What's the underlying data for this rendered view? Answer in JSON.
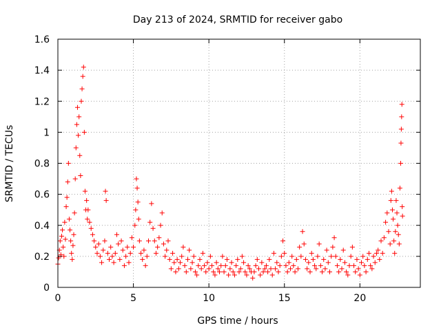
{
  "chart_data": {
    "type": "scatter",
    "title": "Day 213 of 2024, SRMTID for receiver gabo",
    "xlabel": "GPS time / hours",
    "ylabel": "SRMTID / TECUs",
    "xlim": [
      0,
      24
    ],
    "ylim": [
      0,
      1.6
    ],
    "xticks": [
      0,
      5,
      10,
      15,
      20
    ],
    "xtick_labels": [
      "0",
      "5",
      "10",
      "15",
      "20"
    ],
    "yticks": [
      0,
      0.2,
      0.4,
      0.6,
      0.8,
      1.0,
      1.2,
      1.4,
      1.6
    ],
    "ytick_labels": [
      "0",
      "0.2",
      "0.4",
      "0.6",
      "0.8",
      "1",
      "1.2",
      "1.4",
      "1.6"
    ],
    "grid": true,
    "marker": "+",
    "marker_color": "#ff0000",
    "series": [
      {
        "name": "SRMTID",
        "points": [
          [
            0.0,
            0.15
          ],
          [
            0.05,
            0.19
          ],
          [
            0.1,
            0.24
          ],
          [
            0.15,
            0.3
          ],
          [
            0.2,
            0.21
          ],
          [
            0.25,
            0.33
          ],
          [
            0.3,
            0.37
          ],
          [
            0.35,
            0.26
          ],
          [
            0.4,
            0.2
          ],
          [
            0.45,
            0.42
          ],
          [
            0.5,
            0.31
          ],
          [
            0.55,
            0.52
          ],
          [
            0.6,
            0.58
          ],
          [
            0.65,
            0.68
          ],
          [
            0.7,
            0.8
          ],
          [
            0.75,
            0.44
          ],
          [
            0.8,
            0.37
          ],
          [
            0.85,
            0.3
          ],
          [
            0.9,
            0.22
          ],
          [
            0.95,
            0.18
          ],
          [
            1.0,
            0.27
          ],
          [
            1.05,
            0.34
          ],
          [
            1.1,
            0.48
          ],
          [
            1.15,
            0.7
          ],
          [
            1.2,
            0.9
          ],
          [
            1.25,
            1.05
          ],
          [
            1.3,
            1.16
          ],
          [
            1.35,
            0.98
          ],
          [
            1.4,
            1.1
          ],
          [
            1.45,
            0.85
          ],
          [
            1.5,
            0.72
          ],
          [
            1.55,
            1.2
          ],
          [
            1.6,
            1.28
          ],
          [
            1.65,
            1.36
          ],
          [
            1.7,
            1.42
          ],
          [
            1.75,
            1.0
          ],
          [
            1.8,
            0.62
          ],
          [
            1.85,
            0.5
          ],
          [
            1.9,
            0.56
          ],
          [
            1.95,
            0.44
          ],
          [
            2.0,
            0.5
          ],
          [
            2.1,
            0.42
          ],
          [
            2.2,
            0.38
          ],
          [
            2.3,
            0.34
          ],
          [
            2.4,
            0.3
          ],
          [
            2.5,
            0.26
          ],
          [
            2.6,
            0.22
          ],
          [
            2.7,
            0.28
          ],
          [
            2.8,
            0.2
          ],
          [
            2.9,
            0.16
          ],
          [
            3.0,
            0.24
          ],
          [
            3.1,
            0.3
          ],
          [
            3.15,
            0.62
          ],
          [
            3.2,
            0.56
          ],
          [
            3.3,
            0.22
          ],
          [
            3.4,
            0.18
          ],
          [
            3.5,
            0.26
          ],
          [
            3.6,
            0.2
          ],
          [
            3.7,
            0.16
          ],
          [
            3.8,
            0.22
          ],
          [
            3.9,
            0.34
          ],
          [
            4.0,
            0.28
          ],
          [
            4.1,
            0.18
          ],
          [
            4.2,
            0.3
          ],
          [
            4.3,
            0.24
          ],
          [
            4.4,
            0.14
          ],
          [
            4.5,
            0.2
          ],
          [
            4.6,
            0.26
          ],
          [
            4.7,
            0.16
          ],
          [
            4.8,
            0.22
          ],
          [
            4.9,
            0.32
          ],
          [
            5.0,
            0.26
          ],
          [
            5.1,
            0.4
          ],
          [
            5.15,
            0.5
          ],
          [
            5.2,
            0.7
          ],
          [
            5.25,
            0.64
          ],
          [
            5.3,
            0.55
          ],
          [
            5.35,
            0.44
          ],
          [
            5.4,
            0.3
          ],
          [
            5.5,
            0.22
          ],
          [
            5.6,
            0.18
          ],
          [
            5.7,
            0.24
          ],
          [
            5.8,
            0.14
          ],
          [
            5.9,
            0.2
          ],
          [
            6.0,
            0.3
          ],
          [
            6.1,
            0.42
          ],
          [
            6.2,
            0.54
          ],
          [
            6.3,
            0.38
          ],
          [
            6.4,
            0.3
          ],
          [
            6.5,
            0.22
          ],
          [
            6.6,
            0.26
          ],
          [
            6.7,
            0.32
          ],
          [
            6.8,
            0.4
          ],
          [
            6.9,
            0.48
          ],
          [
            7.0,
            0.28
          ],
          [
            7.1,
            0.2
          ],
          [
            7.2,
            0.24
          ],
          [
            7.3,
            0.3
          ],
          [
            7.4,
            0.18
          ],
          [
            7.5,
            0.12
          ],
          [
            7.6,
            0.22
          ],
          [
            7.7,
            0.16
          ],
          [
            7.8,
            0.1
          ],
          [
            7.9,
            0.18
          ],
          [
            8.0,
            0.12
          ],
          [
            8.1,
            0.16
          ],
          [
            8.2,
            0.2
          ],
          [
            8.3,
            0.26
          ],
          [
            8.4,
            0.14
          ],
          [
            8.5,
            0.1
          ],
          [
            8.6,
            0.18
          ],
          [
            8.7,
            0.24
          ],
          [
            8.8,
            0.12
          ],
          [
            8.9,
            0.16
          ],
          [
            9.0,
            0.2
          ],
          [
            9.1,
            0.1
          ],
          [
            9.2,
            0.08
          ],
          [
            9.3,
            0.14
          ],
          [
            9.4,
            0.18
          ],
          [
            9.5,
            0.12
          ],
          [
            9.6,
            0.22
          ],
          [
            9.7,
            0.14
          ],
          [
            9.8,
            0.1
          ],
          [
            9.9,
            0.16
          ],
          [
            10.0,
            0.12
          ],
          [
            10.1,
            0.2
          ],
          [
            10.2,
            0.14
          ],
          [
            10.3,
            0.1
          ],
          [
            10.4,
            0.08
          ],
          [
            10.5,
            0.16
          ],
          [
            10.6,
            0.12
          ],
          [
            10.7,
            0.1
          ],
          [
            10.8,
            0.14
          ],
          [
            10.9,
            0.2
          ],
          [
            11.0,
            0.1
          ],
          [
            11.1,
            0.14
          ],
          [
            11.2,
            0.18
          ],
          [
            11.3,
            0.08
          ],
          [
            11.4,
            0.12
          ],
          [
            11.5,
            0.16
          ],
          [
            11.6,
            0.1
          ],
          [
            11.7,
            0.08
          ],
          [
            11.8,
            0.14
          ],
          [
            11.9,
            0.18
          ],
          [
            12.0,
            0.1
          ],
          [
            12.1,
            0.12
          ],
          [
            12.2,
            0.2
          ],
          [
            12.3,
            0.16
          ],
          [
            12.4,
            0.1
          ],
          [
            12.5,
            0.08
          ],
          [
            12.6,
            0.14
          ],
          [
            12.7,
            0.12
          ],
          [
            12.8,
            0.1
          ],
          [
            12.9,
            0.06
          ],
          [
            13.0,
            0.1
          ],
          [
            13.1,
            0.14
          ],
          [
            13.2,
            0.18
          ],
          [
            13.3,
            0.12
          ],
          [
            13.4,
            0.08
          ],
          [
            13.5,
            0.16
          ],
          [
            13.6,
            0.1
          ],
          [
            13.7,
            0.12
          ],
          [
            13.8,
            0.14
          ],
          [
            13.9,
            0.1
          ],
          [
            14.0,
            0.18
          ],
          [
            14.1,
            0.12
          ],
          [
            14.2,
            0.08
          ],
          [
            14.3,
            0.22
          ],
          [
            14.4,
            0.12
          ],
          [
            14.5,
            0.16
          ],
          [
            14.6,
            0.1
          ],
          [
            14.7,
            0.14
          ],
          [
            14.8,
            0.2
          ],
          [
            14.9,
            0.3
          ],
          [
            15.0,
            0.22
          ],
          [
            15.1,
            0.14
          ],
          [
            15.2,
            0.1
          ],
          [
            15.3,
            0.16
          ],
          [
            15.4,
            0.12
          ],
          [
            15.5,
            0.2
          ],
          [
            15.6,
            0.14
          ],
          [
            15.7,
            0.1
          ],
          [
            15.8,
            0.18
          ],
          [
            15.9,
            0.12
          ],
          [
            16.0,
            0.26
          ],
          [
            16.1,
            0.2
          ],
          [
            16.2,
            0.36
          ],
          [
            16.3,
            0.28
          ],
          [
            16.4,
            0.18
          ],
          [
            16.5,
            0.12
          ],
          [
            16.6,
            0.16
          ],
          [
            16.7,
            0.1
          ],
          [
            16.8,
            0.22
          ],
          [
            16.9,
            0.18
          ],
          [
            17.0,
            0.14
          ],
          [
            17.1,
            0.12
          ],
          [
            17.2,
            0.2
          ],
          [
            17.3,
            0.28
          ],
          [
            17.4,
            0.14
          ],
          [
            17.5,
            0.1
          ],
          [
            17.6,
            0.18
          ],
          [
            17.7,
            0.12
          ],
          [
            17.8,
            0.24
          ],
          [
            17.9,
            0.16
          ],
          [
            18.0,
            0.1
          ],
          [
            18.1,
            0.2
          ],
          [
            18.2,
            0.26
          ],
          [
            18.3,
            0.32
          ],
          [
            18.4,
            0.2
          ],
          [
            18.5,
            0.14
          ],
          [
            18.6,
            0.1
          ],
          [
            18.7,
            0.18
          ],
          [
            18.8,
            0.12
          ],
          [
            18.9,
            0.24
          ],
          [
            19.0,
            0.16
          ],
          [
            19.1,
            0.1
          ],
          [
            19.2,
            0.08
          ],
          [
            19.3,
            0.14
          ],
          [
            19.4,
            0.2
          ],
          [
            19.5,
            0.26
          ],
          [
            19.6,
            0.14
          ],
          [
            19.7,
            0.1
          ],
          [
            19.8,
            0.18
          ],
          [
            19.9,
            0.12
          ],
          [
            20.0,
            0.08
          ],
          [
            20.1,
            0.16
          ],
          [
            20.2,
            0.2
          ],
          [
            20.3,
            0.14
          ],
          [
            20.4,
            0.1
          ],
          [
            20.5,
            0.18
          ],
          [
            20.6,
            0.22
          ],
          [
            20.7,
            0.14
          ],
          [
            20.8,
            0.12
          ],
          [
            20.9,
            0.2
          ],
          [
            21.0,
            0.16
          ],
          [
            21.1,
            0.22
          ],
          [
            21.2,
            0.24
          ],
          [
            21.3,
            0.18
          ],
          [
            21.4,
            0.3
          ],
          [
            21.5,
            0.22
          ],
          [
            21.6,
            0.32
          ],
          [
            21.7,
            0.42
          ],
          [
            21.8,
            0.48
          ],
          [
            21.9,
            0.36
          ],
          [
            22.0,
            0.28
          ],
          [
            22.05,
            0.56
          ],
          [
            22.1,
            0.62
          ],
          [
            22.15,
            0.5
          ],
          [
            22.2,
            0.44
          ],
          [
            22.25,
            0.3
          ],
          [
            22.3,
            0.22
          ],
          [
            22.35,
            0.36
          ],
          [
            22.4,
            0.56
          ],
          [
            22.45,
            0.48
          ],
          [
            22.5,
            0.4
          ],
          [
            22.55,
            0.34
          ],
          [
            22.6,
            0.28
          ],
          [
            22.65,
            0.64
          ],
          [
            22.7,
            0.8
          ],
          [
            22.72,
            0.93
          ],
          [
            22.74,
            1.02
          ],
          [
            22.76,
            1.1
          ],
          [
            22.78,
            1.18
          ],
          [
            22.8,
            0.52
          ],
          [
            22.82,
            0.46
          ]
        ]
      }
    ]
  }
}
